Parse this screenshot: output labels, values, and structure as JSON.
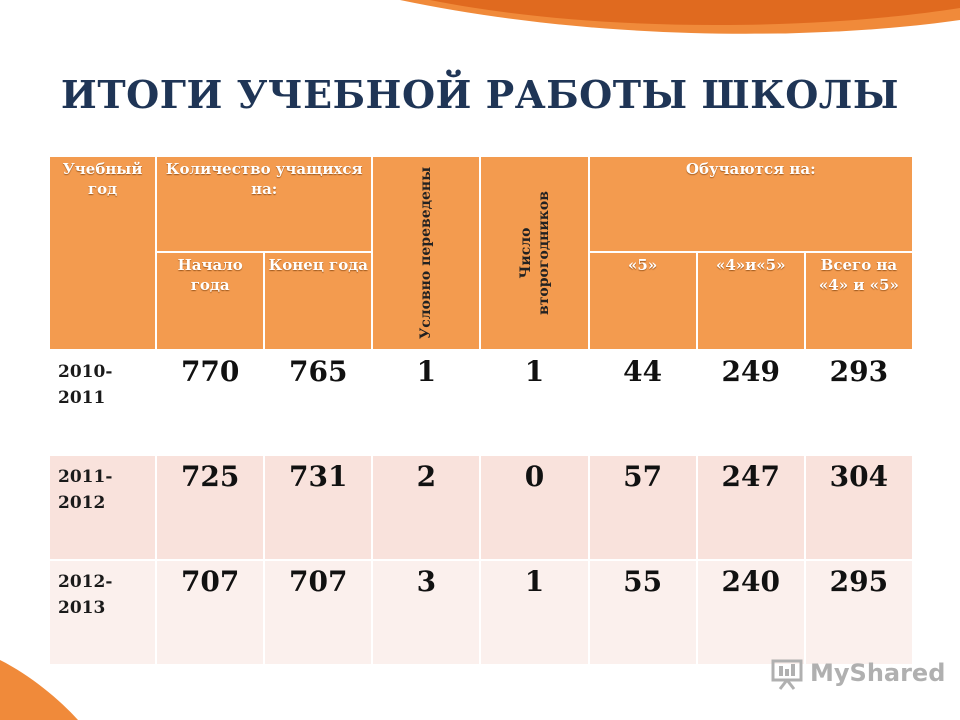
{
  "title": "ИТОГИ УЧЕБНОЙ РАБОТЫ ШКОЛЫ",
  "header": {
    "year_label": "Учебный год",
    "students_label": "Количество учащихся на:",
    "conditional_label": "Условно переведены",
    "repeat_label": "Число второгодников",
    "study_label": "Обучаются на:",
    "start_label": "Начало года",
    "end_label": "Конец года",
    "grade5_label": "«5»",
    "grade45_label": "«4»и«5»",
    "total45_label": "Всего на «4» и «5»"
  },
  "rows": [
    {
      "year": "2010-2011",
      "start": "770",
      "end": "765",
      "conditional": "1",
      "repeat": "1",
      "g5": "44",
      "g45": "249",
      "total": "293"
    },
    {
      "year": "2011-2012",
      "start": "725",
      "end": "731",
      "conditional": "2",
      "repeat": "0",
      "g5": "57",
      "g45": "247",
      "total": "304"
    },
    {
      "year": "2012-2013",
      "start": "707",
      "end": "707",
      "conditional": "3",
      "repeat": "1",
      "g5": "55",
      "g45": "240",
      "total": "295"
    }
  ],
  "watermark": {
    "text": "MyShared",
    "icon": "presentation-board-icon"
  },
  "colors": {
    "header_orange": "#f39b4f",
    "title_navy": "#1f3556",
    "accent_orange": "#f08a3a"
  }
}
